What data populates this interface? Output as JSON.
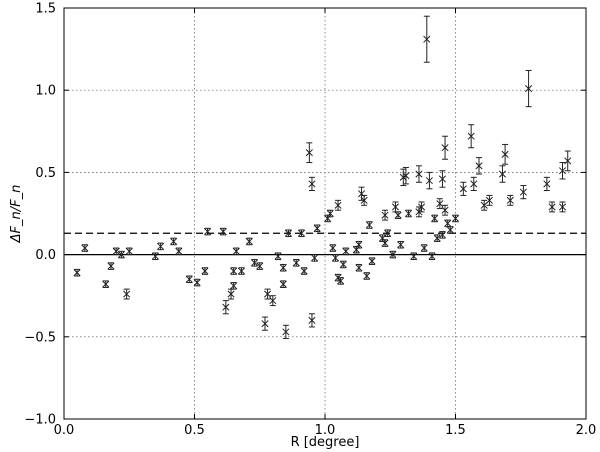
{
  "chart_data": {
    "type": "scatter",
    "title": "",
    "xlabel": "R [degree]",
    "ylabel": "ΔF_n/F_n",
    "xlim": [
      0,
      2
    ],
    "ylim": [
      -1.0,
      1.5
    ],
    "x_ticks": [
      "0.0",
      "0.5",
      "1.0",
      "1.5",
      "2.0"
    ],
    "y_ticks": [
      "−1.0",
      "−0.5",
      "0.0",
      "0.5",
      "1.0",
      "1.5"
    ],
    "x_tick_values": [
      0,
      0.5,
      1.0,
      1.5,
      2.0
    ],
    "y_tick_values": [
      -1.0,
      -0.5,
      0.0,
      0.5,
      1.0,
      1.5
    ],
    "grid": true,
    "reference_lines": [
      {
        "style": "solid",
        "y": 0.0
      },
      {
        "style": "dashed",
        "y": 0.13
      }
    ],
    "marker": "x",
    "points": [
      {
        "x": 0.05,
        "y": -0.11,
        "err": 0.02
      },
      {
        "x": 0.08,
        "y": 0.04,
        "err": 0.02
      },
      {
        "x": 0.16,
        "y": -0.18,
        "err": 0.02
      },
      {
        "x": 0.18,
        "y": -0.07,
        "err": 0.02
      },
      {
        "x": 0.2,
        "y": 0.02,
        "err": 0.02
      },
      {
        "x": 0.22,
        "y": 0.0,
        "err": 0.02
      },
      {
        "x": 0.24,
        "y": -0.24,
        "err": 0.03
      },
      {
        "x": 0.25,
        "y": 0.02,
        "err": 0.02
      },
      {
        "x": 0.35,
        "y": -0.01,
        "err": 0.02
      },
      {
        "x": 0.37,
        "y": 0.05,
        "err": 0.02
      },
      {
        "x": 0.42,
        "y": 0.08,
        "err": 0.02
      },
      {
        "x": 0.44,
        "y": 0.02,
        "err": 0.02
      },
      {
        "x": 0.48,
        "y": -0.15,
        "err": 0.02
      },
      {
        "x": 0.51,
        "y": -0.17,
        "err": 0.02
      },
      {
        "x": 0.54,
        "y": -0.1,
        "err": 0.02
      },
      {
        "x": 0.55,
        "y": 0.14,
        "err": 0.02
      },
      {
        "x": 0.61,
        "y": 0.14,
        "err": 0.02
      },
      {
        "x": 0.62,
        "y": -0.32,
        "err": 0.04
      },
      {
        "x": 0.64,
        "y": -0.24,
        "err": 0.03
      },
      {
        "x": 0.65,
        "y": -0.19,
        "err": 0.02
      },
      {
        "x": 0.65,
        "y": -0.1,
        "err": 0.02
      },
      {
        "x": 0.66,
        "y": 0.02,
        "err": 0.02
      },
      {
        "x": 0.68,
        "y": -0.1,
        "err": 0.02
      },
      {
        "x": 0.71,
        "y": 0.08,
        "err": 0.02
      },
      {
        "x": 0.73,
        "y": -0.05,
        "err": 0.02
      },
      {
        "x": 0.75,
        "y": -0.07,
        "err": 0.02
      },
      {
        "x": 0.77,
        "y": -0.42,
        "err": 0.04
      },
      {
        "x": 0.78,
        "y": -0.24,
        "err": 0.03
      },
      {
        "x": 0.8,
        "y": -0.28,
        "err": 0.03
      },
      {
        "x": 0.82,
        "y": -0.01,
        "err": 0.02
      },
      {
        "x": 0.84,
        "y": -0.08,
        "err": 0.02
      },
      {
        "x": 0.84,
        "y": -0.18,
        "err": 0.02
      },
      {
        "x": 0.85,
        "y": -0.47,
        "err": 0.04
      },
      {
        "x": 0.86,
        "y": 0.13,
        "err": 0.02
      },
      {
        "x": 0.89,
        "y": -0.05,
        "err": 0.02
      },
      {
        "x": 0.91,
        "y": 0.13,
        "err": 0.02
      },
      {
        "x": 0.92,
        "y": -0.1,
        "err": 0.02
      },
      {
        "x": 0.94,
        "y": 0.62,
        "err": 0.06
      },
      {
        "x": 0.95,
        "y": 0.43,
        "err": 0.04
      },
      {
        "x": 0.95,
        "y": -0.4,
        "err": 0.04
      },
      {
        "x": 0.96,
        "y": -0.02,
        "err": 0.02
      },
      {
        "x": 0.97,
        "y": 0.16,
        "err": 0.02
      },
      {
        "x": 1.01,
        "y": 0.22,
        "err": 0.02
      },
      {
        "x": 1.02,
        "y": 0.25,
        "err": 0.02
      },
      {
        "x": 1.03,
        "y": 0.04,
        "err": 0.02
      },
      {
        "x": 1.04,
        "y": -0.02,
        "err": 0.02
      },
      {
        "x": 1.05,
        "y": -0.14,
        "err": 0.02
      },
      {
        "x": 1.05,
        "y": 0.3,
        "err": 0.03
      },
      {
        "x": 1.06,
        "y": -0.16,
        "err": 0.02
      },
      {
        "x": 1.07,
        "y": -0.06,
        "err": 0.02
      },
      {
        "x": 1.08,
        "y": 0.02,
        "err": 0.02
      },
      {
        "x": 1.12,
        "y": 0.03,
        "err": 0.02
      },
      {
        "x": 1.13,
        "y": 0.06,
        "err": 0.02
      },
      {
        "x": 1.13,
        "y": -0.08,
        "err": 0.02
      },
      {
        "x": 1.14,
        "y": 0.37,
        "err": 0.04
      },
      {
        "x": 1.15,
        "y": 0.33,
        "err": 0.03
      },
      {
        "x": 1.16,
        "y": -0.13,
        "err": 0.02
      },
      {
        "x": 1.17,
        "y": 0.18,
        "err": 0.02
      },
      {
        "x": 1.18,
        "y": -0.04,
        "err": 0.02
      },
      {
        "x": 1.22,
        "y": 0.1,
        "err": 0.02
      },
      {
        "x": 1.23,
        "y": 0.24,
        "err": 0.03
      },
      {
        "x": 1.23,
        "y": 0.07,
        "err": 0.02
      },
      {
        "x": 1.24,
        "y": 0.13,
        "err": 0.02
      },
      {
        "x": 1.26,
        "y": 0.0,
        "err": 0.02
      },
      {
        "x": 1.27,
        "y": 0.29,
        "err": 0.03
      },
      {
        "x": 1.28,
        "y": 0.24,
        "err": 0.02
      },
      {
        "x": 1.29,
        "y": 0.06,
        "err": 0.02
      },
      {
        "x": 1.3,
        "y": 0.47,
        "err": 0.05
      },
      {
        "x": 1.31,
        "y": 0.48,
        "err": 0.05
      },
      {
        "x": 1.32,
        "y": 0.25,
        "err": 0.02
      },
      {
        "x": 1.34,
        "y": -0.01,
        "err": 0.02
      },
      {
        "x": 1.36,
        "y": 0.26,
        "err": 0.03
      },
      {
        "x": 1.36,
        "y": 0.49,
        "err": 0.05
      },
      {
        "x": 1.37,
        "y": 0.29,
        "err": 0.03
      },
      {
        "x": 1.38,
        "y": 0.04,
        "err": 0.02
      },
      {
        "x": 1.39,
        "y": 1.31,
        "err": 0.14
      },
      {
        "x": 1.4,
        "y": 0.45,
        "err": 0.05
      },
      {
        "x": 1.41,
        "y": -0.01,
        "err": 0.02
      },
      {
        "x": 1.42,
        "y": 0.22,
        "err": 0.02
      },
      {
        "x": 1.43,
        "y": 0.1,
        "err": 0.02
      },
      {
        "x": 1.44,
        "y": 0.31,
        "err": 0.03
      },
      {
        "x": 1.45,
        "y": 0.46,
        "err": 0.05
      },
      {
        "x": 1.45,
        "y": 0.12,
        "err": 0.02
      },
      {
        "x": 1.46,
        "y": 0.65,
        "err": 0.07
      },
      {
        "x": 1.46,
        "y": 0.27,
        "err": 0.03
      },
      {
        "x": 1.47,
        "y": 0.19,
        "err": 0.02
      },
      {
        "x": 1.48,
        "y": 0.15,
        "err": 0.02
      },
      {
        "x": 1.5,
        "y": 0.22,
        "err": 0.02
      },
      {
        "x": 1.53,
        "y": 0.4,
        "err": 0.04
      },
      {
        "x": 1.56,
        "y": 0.72,
        "err": 0.07
      },
      {
        "x": 1.57,
        "y": 0.43,
        "err": 0.04
      },
      {
        "x": 1.59,
        "y": 0.54,
        "err": 0.05
      },
      {
        "x": 1.61,
        "y": 0.3,
        "err": 0.03
      },
      {
        "x": 1.63,
        "y": 0.33,
        "err": 0.03
      },
      {
        "x": 1.68,
        "y": 0.49,
        "err": 0.05
      },
      {
        "x": 1.69,
        "y": 0.61,
        "err": 0.06
      },
      {
        "x": 1.71,
        "y": 0.33,
        "err": 0.03
      },
      {
        "x": 1.76,
        "y": 0.38,
        "err": 0.04
      },
      {
        "x": 1.78,
        "y": 1.01,
        "err": 0.11
      },
      {
        "x": 1.85,
        "y": 0.43,
        "err": 0.04
      },
      {
        "x": 1.87,
        "y": 0.29,
        "err": 0.03
      },
      {
        "x": 1.91,
        "y": 0.29,
        "err": 0.03
      },
      {
        "x": 1.91,
        "y": 0.51,
        "err": 0.05
      },
      {
        "x": 1.93,
        "y": 0.57,
        "err": 0.06
      }
    ]
  }
}
